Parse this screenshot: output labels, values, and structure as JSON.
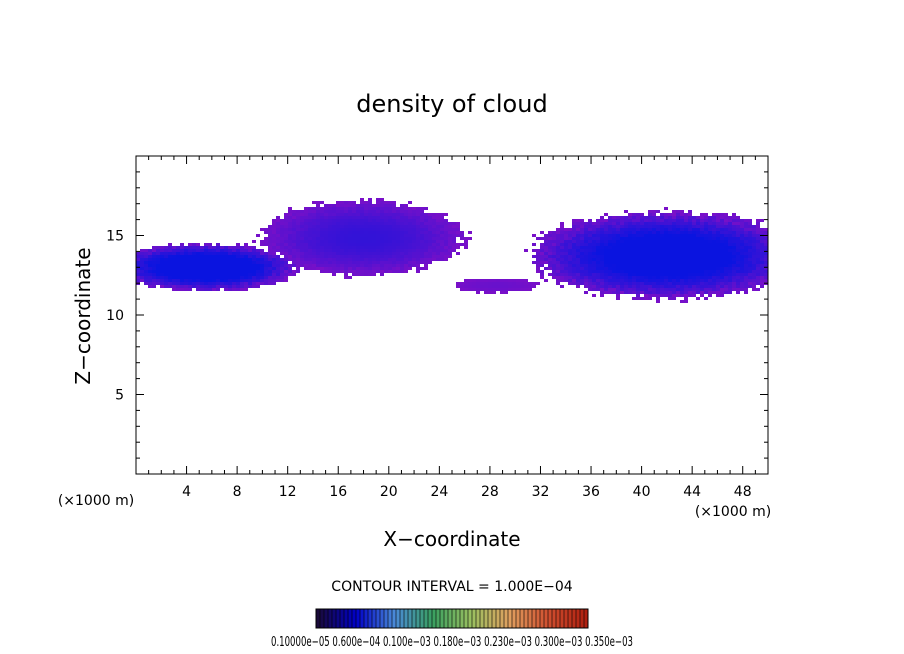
{
  "chart_data": {
    "type": "heatmap",
    "title": "density of cloud",
    "xlabel": "X−coordinate",
    "ylabel": "Z−coordinate",
    "x_unit": "(×1000 m)",
    "y_unit": "(×1000 m)",
    "xlim": [
      0,
      50
    ],
    "ylim": [
      0,
      20
    ],
    "x_ticks": [
      "4",
      "8",
      "12",
      "16",
      "20",
      "24",
      "28",
      "32",
      "36",
      "40",
      "44",
      "48"
    ],
    "y_ticks": [
      "5",
      "10",
      "15"
    ],
    "contour_interval_text": "CONTOUR INTERVAL = 1.000E−04",
    "colorbar_labels_text": "0.10000e−05  0.600e−04  0.100e−03  0.180e−03  0.230e−03  0.300e−03  0.350e−03",
    "colorbar_colors": [
      "#1a0a3a",
      "#0000c8",
      "#4a8ad8",
      "#3aa060",
      "#9ac060",
      "#e0a060",
      "#d05030",
      "#b02010"
    ],
    "cloud_color_low": "#7a10c8",
    "cloud_color_high": "#0a14e0",
    "cloud_regions": [
      {
        "x": [
          0,
          11
        ],
        "z": [
          11.5,
          14.5
        ],
        "max_density": 0.9
      },
      {
        "x": [
          12,
          24
        ],
        "z": [
          12.5,
          17.2
        ],
        "max_density": 0.4
      },
      {
        "x": [
          26,
          31
        ],
        "z": [
          11.4,
          12.3
        ],
        "max_density": 0.1
      },
      {
        "x": [
          34,
          50
        ],
        "z": [
          11.0,
          16.5
        ],
        "max_density": 0.8
      }
    ]
  }
}
